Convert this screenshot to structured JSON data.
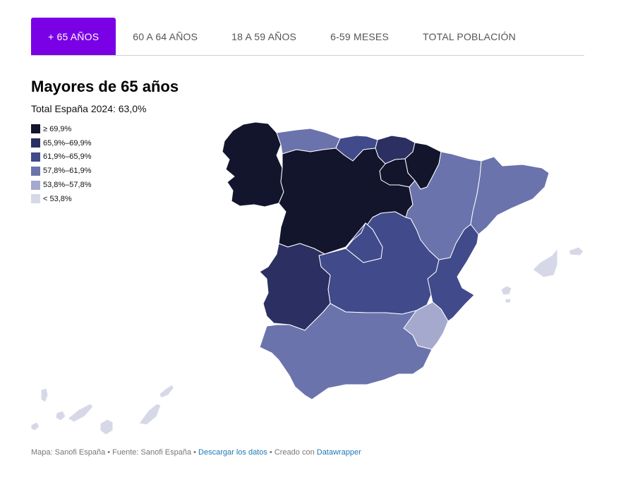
{
  "tabs": [
    {
      "label": "+ 65 AÑOS",
      "active": true
    },
    {
      "label": "60 A 64 AÑOS",
      "active": false
    },
    {
      "label": "18 A 59 AÑOS",
      "active": false
    },
    {
      "label": "6-59 MESES",
      "active": false
    },
    {
      "label": "TOTAL POBLACIÓN",
      "active": false
    }
  ],
  "map": {
    "title": "Mayores de 65 años",
    "subtitle": "Total España 2024: 63,0%",
    "legend": [
      {
        "label": "≥ 69,9%",
        "color": "#13152d"
      },
      {
        "label": "65,9%–69,9%",
        "color": "#2b2f61"
      },
      {
        "label": "61,9%–65,9%",
        "color": "#414a8a"
      },
      {
        "label": "57,8%–61,9%",
        "color": "#6a73ab"
      },
      {
        "label": "53,8%–57,8%",
        "color": "#a6a9ce"
      },
      {
        "label": "< 53,8%",
        "color": "#d6d8e8"
      }
    ],
    "regions": [
      {
        "name": "Galicia",
        "bin": 0
      },
      {
        "name": "Castilla y León",
        "bin": 0
      },
      {
        "name": "Asturias",
        "bin": 3
      },
      {
        "name": "Cantabria",
        "bin": 2
      },
      {
        "name": "País Vasco",
        "bin": 1
      },
      {
        "name": "Navarra",
        "bin": 0
      },
      {
        "name": "La Rioja",
        "bin": 0
      },
      {
        "name": "Aragón",
        "bin": 3
      },
      {
        "name": "Cataluña",
        "bin": 3
      },
      {
        "name": "Comunidad de Madrid",
        "bin": 2
      },
      {
        "name": "Castilla-La Mancha",
        "bin": 2
      },
      {
        "name": "Comunitat Valenciana",
        "bin": 2
      },
      {
        "name": "Región de Murcia",
        "bin": 4
      },
      {
        "name": "Extremadura",
        "bin": 1
      },
      {
        "name": "Andalucía",
        "bin": 3
      },
      {
        "name": "Illes Balears",
        "bin": 5
      },
      {
        "name": "Canarias",
        "bin": 5
      }
    ]
  },
  "footer": {
    "source": "Mapa: Sanofi España • Fuente: Sanofi España • ",
    "download_label": "Descargar los datos",
    "created_with": " • Creado con ",
    "tool_label": "Datawrapper"
  }
}
